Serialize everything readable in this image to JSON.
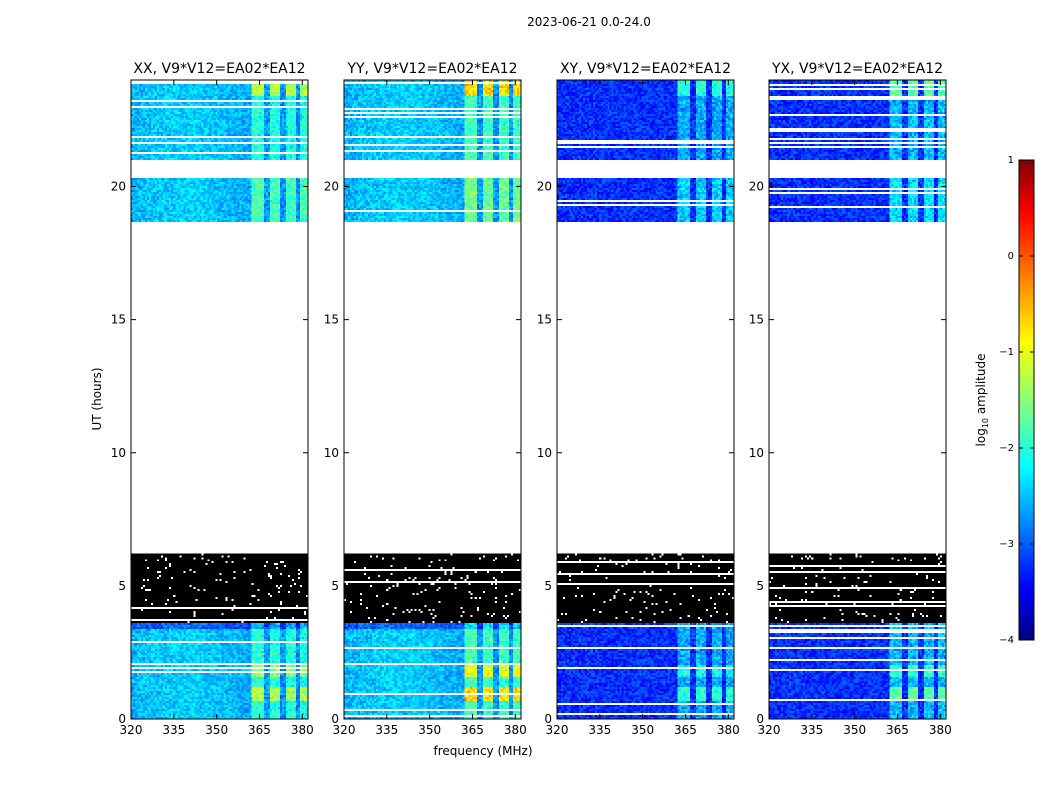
{
  "chart_data": {
    "type": "heatmap",
    "title": "2023-06-21 0.0-24.0",
    "xlabel": "frequency (MHz)",
    "ylabel": "UT (hours)",
    "xlim": [
      320,
      382
    ],
    "ylim": [
      0,
      24
    ],
    "x_ticks": [
      "320",
      "335",
      "350",
      "365",
      "380"
    ],
    "y_ticks": [
      "0",
      "5",
      "10",
      "15",
      "20"
    ],
    "panels": [
      {
        "title": "XX, V9*V12=EA02*EA12",
        "baseline": "cyan",
        "rfi_strength": 0.8
      },
      {
        "title": "YY, V9*V12=EA02*EA12",
        "baseline": "cyan",
        "rfi_strength": 1.0
      },
      {
        "title": "XY, V9*V12=EA02*EA12",
        "baseline": "blue",
        "rfi_strength": 0.75
      },
      {
        "title": "YX, V9*V12=EA02*EA12",
        "baseline": "blue",
        "rfi_strength": 0.85
      }
    ],
    "rfi_channels_mhz": [
      [
        362.5,
        366.5
      ],
      [
        368.5,
        372.0
      ],
      [
        374.0,
        377.5
      ],
      [
        379.0,
        382.0
      ]
    ],
    "data_ranges_ut": [
      [
        0.0,
        6.2
      ],
      [
        18.7,
        20.3
      ],
      [
        21.0,
        24.0
      ]
    ],
    "black_flagged_ut": [
      3.6,
      6.2
    ],
    "colorbar": {
      "label": "log10 amplitude",
      "min": -4,
      "max": 1,
      "ticks": [
        "1",
        "0",
        "−1",
        "−2",
        "−3",
        "−4"
      ],
      "colormap": "jet"
    }
  }
}
